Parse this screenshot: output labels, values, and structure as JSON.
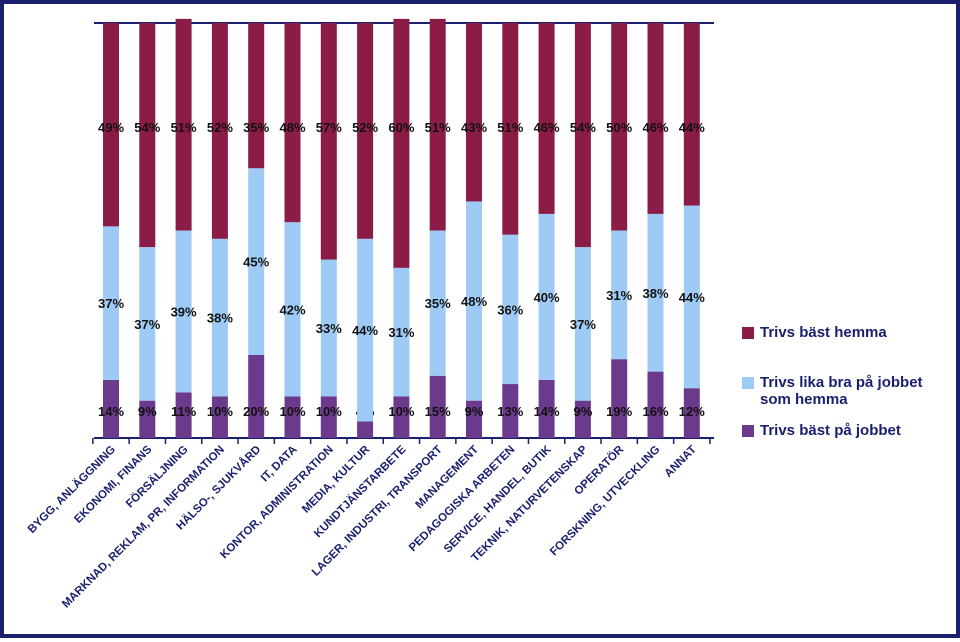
{
  "colors": {
    "border": "#1a1f6e",
    "axis": "#1a1f6e",
    "legend_text": "#1a1f6e"
  },
  "legend": [
    {
      "label": "Trivs bäst hemma",
      "color": "#8b1c48"
    },
    {
      "label": "Trivs lika bra på jobbet\nsom hemma",
      "color": "#9ecbf5"
    },
    {
      "label": "Trivs bäst på jobbet",
      "color": "#6b3a8c"
    }
  ],
  "chart_data": {
    "type": "bar",
    "stacked": true,
    "title": "",
    "xlabel": "",
    "ylabel": "",
    "ylim": [
      0,
      100
    ],
    "grid": false,
    "legend_position": "right",
    "categories": [
      "BYGG, ANLÄGGNING",
      "EKONOMI, FINANS",
      "FÖRSÄLJNING",
      "MARKNAD, REKLAM, PR, INFORMATION",
      "HÄLSO-, SJUKVÅRD",
      "IT, DATA",
      "KONTOR, ADMINISTRATION",
      "MEDIA, KULTUR",
      "KUNDTJÄNSTARBETE",
      "LAGER, INDUSTRI, TRANSPORT",
      "MANAGEMENT",
      "PEDAGOGISKA ARBETEN",
      "SERVICE, HANDEL, BUTIK",
      "TEKNIK, NATURVETENSKAP",
      "OPERATÖR",
      "FORSKNING, UTVECKLING",
      "ANNAT"
    ],
    "series": [
      {
        "name": "Trivs bäst på jobbet",
        "color": "#6b3a8c",
        "values": [
          14,
          9,
          11,
          10,
          20,
          10,
          10,
          4,
          10,
          15,
          9,
          13,
          14,
          9,
          19,
          16,
          12
        ]
      },
      {
        "name": "Trivs lika bra på jobbet som hemma",
        "color": "#9ecbf5",
        "values": [
          37,
          37,
          39,
          38,
          45,
          42,
          33,
          44,
          31,
          35,
          48,
          36,
          40,
          37,
          31,
          38,
          44
        ]
      },
      {
        "name": "Trivs bäst hemma",
        "color": "#8b1c48",
        "values": [
          49,
          54,
          51,
          52,
          35,
          48,
          57,
          52,
          60,
          51,
          43,
          51,
          46,
          54,
          50,
          46,
          44
        ]
      }
    ],
    "data_labels": [
      [
        "14%",
        "9%",
        "11%",
        "10%",
        "20%",
        "10%",
        "10%",
        "4%",
        "10%",
        "15%",
        "9%",
        "13%",
        "14%",
        "9%",
        "19%",
        "16%",
        "12%"
      ],
      [
        "37%",
        "37%",
        "39%",
        "38%",
        "45%",
        "42%",
        "33%",
        "44%",
        "31%",
        "35%",
        "48%",
        "36%",
        "40%",
        "37%",
        "31%",
        "38%",
        "44%"
      ],
      [
        "49%",
        "54%",
        "51%",
        "52%",
        "35%",
        "48%",
        "57%",
        "52%",
        "60%",
        "51%",
        "43%",
        "51%",
        "46%",
        "54%",
        "50%",
        "46%",
        "44%"
      ]
    ]
  }
}
